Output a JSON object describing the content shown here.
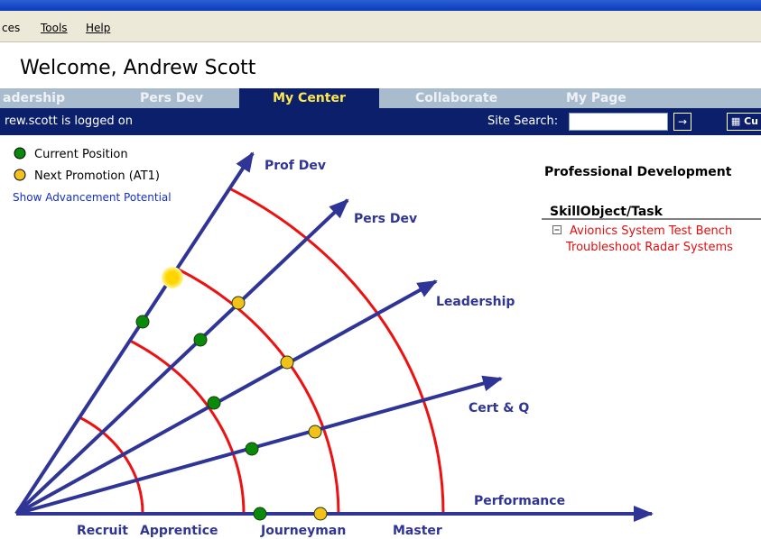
{
  "menu": [
    "ces",
    "Tools",
    "Help"
  ],
  "welcome": "Welcome, Andrew Scott",
  "nav": {
    "tabs": [
      "adership",
      "Pers Dev",
      "My Center",
      "Collaborate",
      "My Page"
    ],
    "active": 2
  },
  "status": {
    "logged_on": "rew.scott is logged on",
    "search_label": "Site Search:",
    "button": "Cu"
  },
  "legend": {
    "current": "Current Position",
    "next": "Next Promotion (AT1)",
    "link": "Show Advancement Potential"
  },
  "diagram": {
    "axes": [
      "Prof Dev",
      "Pers Dev",
      "Leadership",
      "Cert & Q",
      "Performance"
    ],
    "levels": [
      "Recruit",
      "Apprentice",
      "Journeyman",
      "Master"
    ]
  },
  "panel": {
    "title": "Professional Development",
    "header": "SkillObject/Task",
    "items": [
      "Avionics System Test Bench",
      "Troubleshoot Radar Systems"
    ]
  }
}
